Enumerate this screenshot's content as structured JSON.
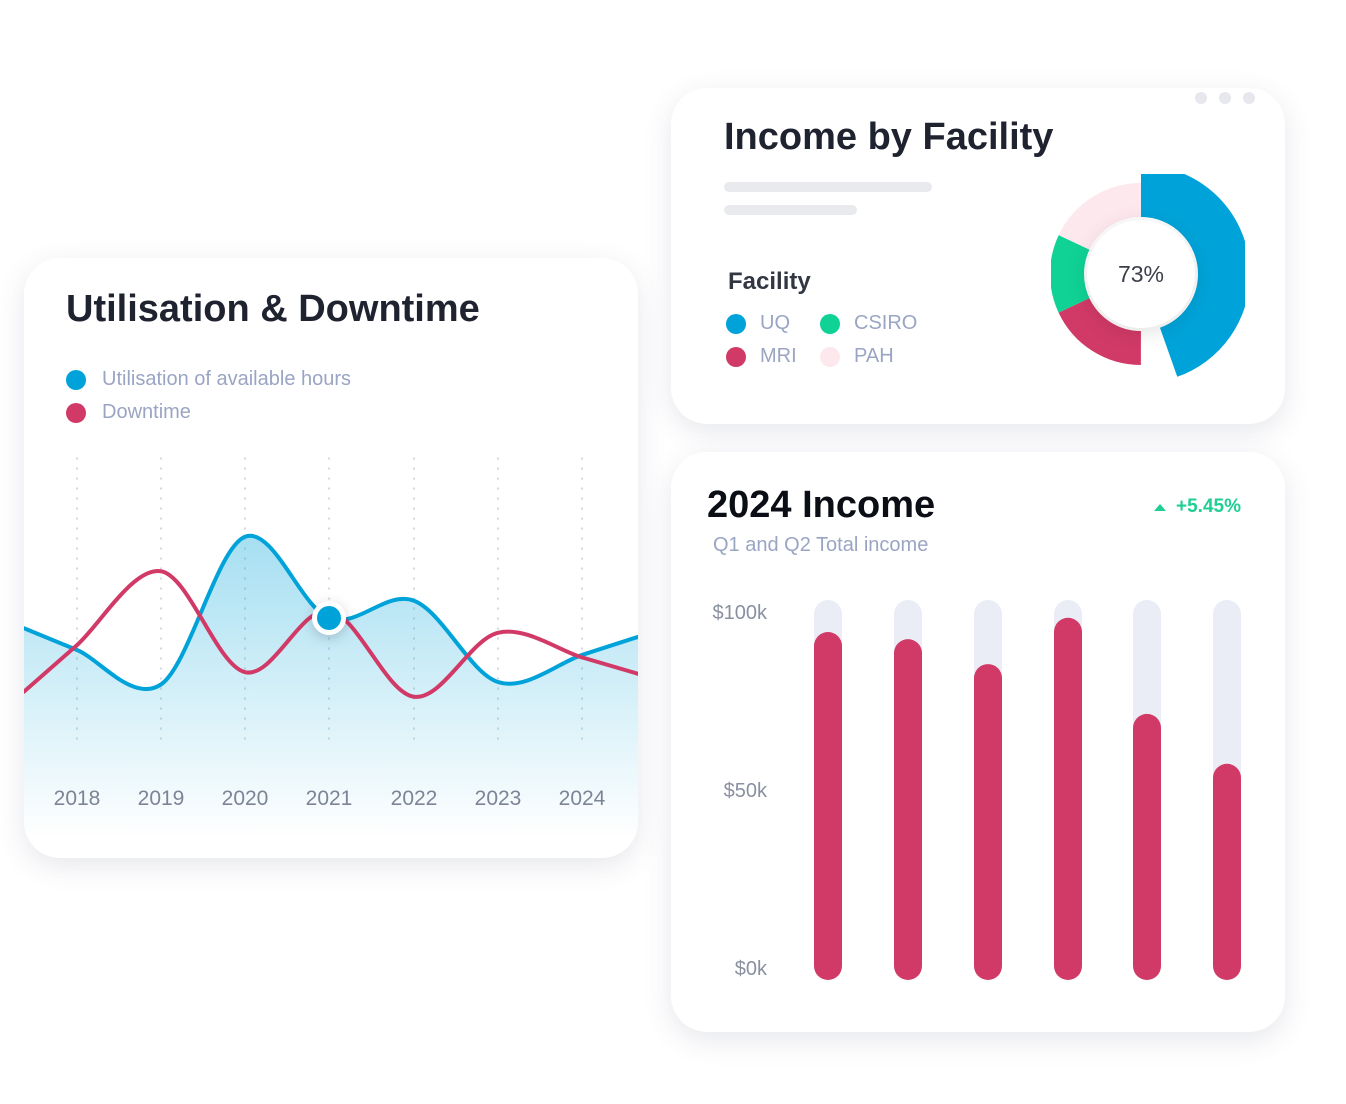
{
  "colors": {
    "blue": "#00a3d9",
    "red": "#d13a67",
    "green": "#10d294",
    "pink": "#fde8ee",
    "track": "#eaedf6",
    "positive": "#1fcf94"
  },
  "utilisation": {
    "title": "Utilisation & Downtime",
    "legend": [
      {
        "label": "Utilisation of available hours",
        "color": "#00a3d9"
      },
      {
        "label": "Downtime",
        "color": "#d13a67"
      }
    ]
  },
  "facility": {
    "title": "Income by Facility",
    "legend_title": "Facility",
    "center_label": "73%",
    "legend": [
      {
        "label": "UQ",
        "color": "#00a3d9"
      },
      {
        "label": "CSIRO",
        "color": "#10d294"
      },
      {
        "label": "MRI",
        "color": "#d13a67"
      },
      {
        "label": "PAH",
        "color": "#fde8ee"
      }
    ]
  },
  "income": {
    "title": "2024 Income",
    "subtitle": "Q1 and Q2 Total income",
    "change": "+5.45%"
  },
  "chart_data": [
    {
      "type": "line",
      "title": "Utilisation & Downtime",
      "x": [
        "2018",
        "2019",
        "2020",
        "2021",
        "2022",
        "2023",
        "2024"
      ],
      "series": [
        {
          "name": "Utilisation of available hours",
          "values": [
            52,
            38,
            98,
            65,
            72,
            39,
            50
          ]
        },
        {
          "name": "Downtime",
          "values": [
            54,
            84,
            43,
            68,
            33,
            59,
            49
          ]
        }
      ],
      "ylim": [
        0,
        130
      ],
      "highlight": {
        "series": 0,
        "x": "2021"
      },
      "grid": true
    },
    {
      "type": "pie",
      "title": "Income by Facility",
      "labels": [
        "UQ",
        "MRI",
        "CSIRO",
        "PAH"
      ],
      "values": [
        50,
        18,
        14,
        18
      ],
      "center_label": "73%"
    },
    {
      "type": "bar",
      "title": "2024 Income",
      "subtitle": "Q1 and Q2 Total income",
      "yticks": [
        "$0k",
        "$50k",
        "$100k"
      ],
      "values": [
        91,
        89,
        82,
        95,
        68,
        54
      ],
      "ylim": [
        0,
        100
      ]
    }
  ]
}
